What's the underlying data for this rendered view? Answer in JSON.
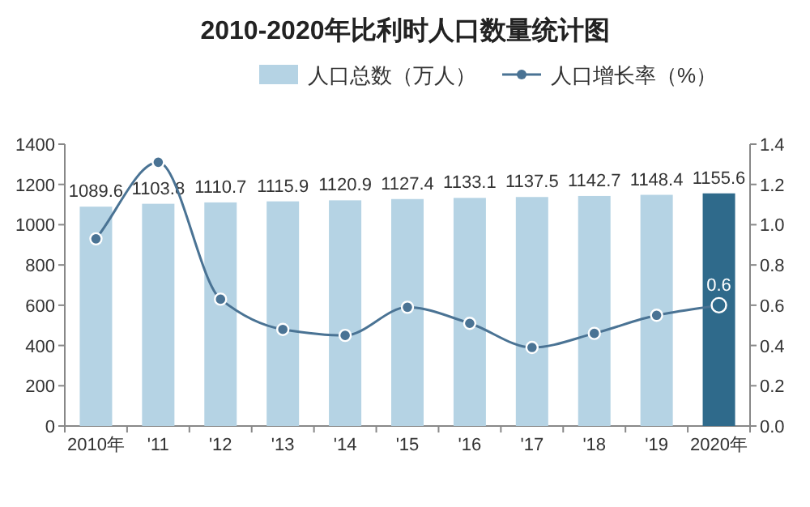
{
  "chart_data": {
    "type": "bar",
    "title": "2010-2020年比利时人口数量统计图",
    "categories": [
      "2010年",
      "'11",
      "'12",
      "'13",
      "'14",
      "'15",
      "'16",
      "'17",
      "'18",
      "'19",
      "2020年"
    ],
    "series": [
      {
        "name": "人口总数（万人）",
        "colors": [
          "#b5d3e4",
          "#b5d3e4",
          "#b5d3e4",
          "#b5d3e4",
          "#b5d3e4",
          "#b5d3e4",
          "#b5d3e4",
          "#b5d3e4",
          "#b5d3e4",
          "#b5d3e4",
          "#2f6a8b"
        ],
        "values": [
          1089.6,
          1103.8,
          1110.7,
          1115.9,
          1120.9,
          1127.4,
          1133.1,
          1137.5,
          1142.7,
          1148.4,
          1155.6
        ],
        "data_labels": true
      },
      {
        "name": "人口增长率（%）",
        "type": "line",
        "axis": "y2",
        "color": "#4a7394",
        "marker": "circle",
        "values": [
          0.93,
          1.31,
          0.63,
          0.48,
          0.45,
          0.59,
          0.51,
          0.39,
          0.46,
          0.55,
          0.6
        ],
        "value_labels": [
          null,
          null,
          null,
          null,
          null,
          null,
          null,
          null,
          null,
          null,
          "0.6"
        ]
      }
    ],
    "ylim": [
      0,
      1400
    ],
    "yticks": [
      0,
      200,
      400,
      600,
      800,
      1000,
      1200,
      1400
    ],
    "y2lim": [
      0,
      1.4
    ],
    "y2ticks": [
      {
        "value": 0,
        "label": "0.0"
      },
      {
        "value": 0.2,
        "label": "0.2"
      },
      {
        "value": 0.4,
        "label": "0.4"
      },
      {
        "value": 0.6,
        "label": "0.6"
      },
      {
        "value": 0.8,
        "label": "0.8"
      },
      {
        "value": 1,
        "label": "1.0"
      },
      {
        "value": 1.2,
        "label": "1.2"
      },
      {
        "value": 1.4,
        "label": "1.4"
      }
    ],
    "grid": false,
    "legend": "top"
  }
}
